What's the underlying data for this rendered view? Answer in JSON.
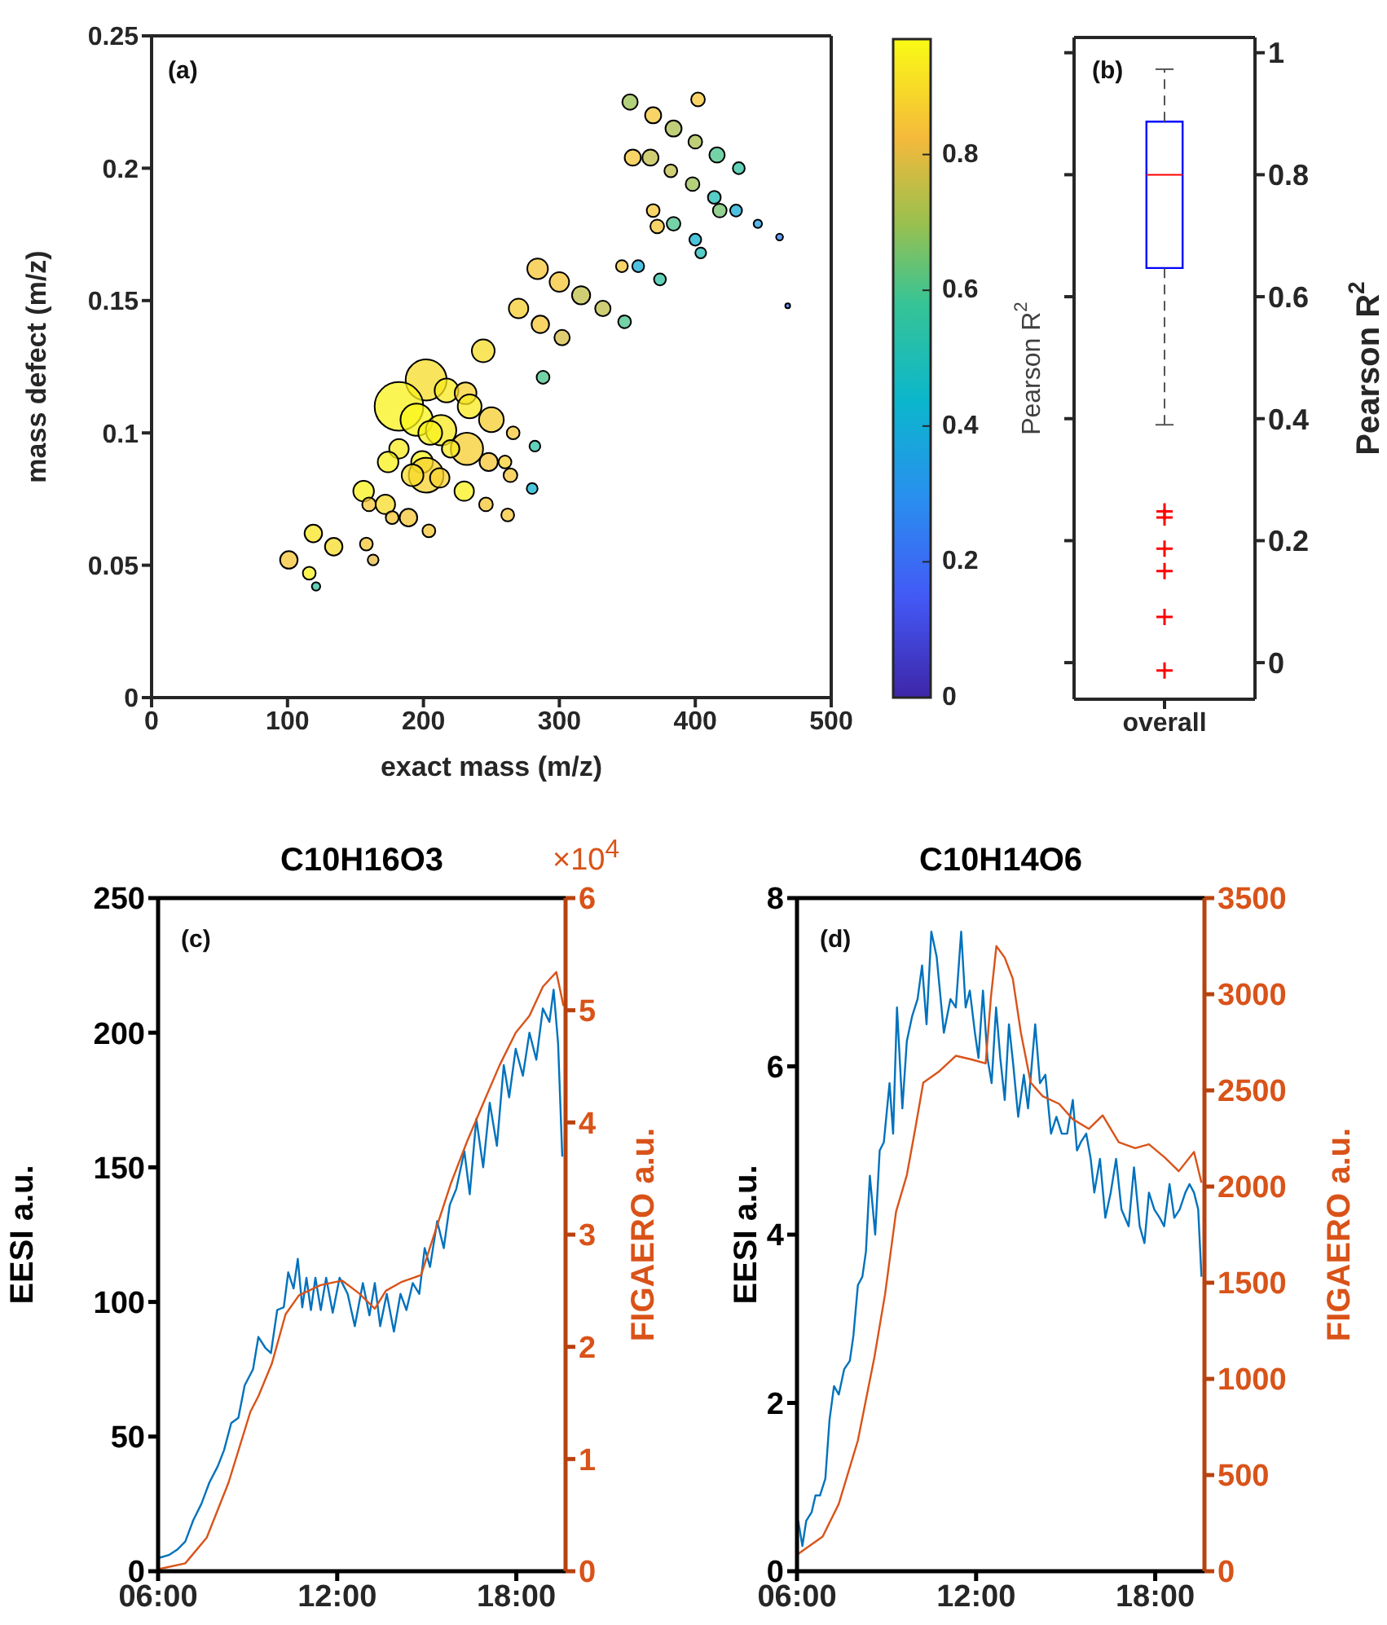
{
  "chart_data": [
    {
      "type": "bubble",
      "xlabel": "exact mass (m/z)",
      "ylabel": "mass defect (m/z)",
      "clabel": "Pearson R$^{2}$",
      "annotations": [
        "(a)"
      ],
      "xlim": [
        0,
        500
      ],
      "xticks": [
        0,
        100,
        200,
        300,
        400,
        500
      ],
      "ylim": [
        0,
        0.25
      ],
      "yticks": [
        0,
        0.05,
        0.1,
        0.15,
        0.2,
        0.25
      ],
      "clim": [
        0,
        0.97
      ],
      "cticks": [
        0,
        0.2,
        0.4,
        0.6,
        0.8
      ],
      "series": [
        {
          "x": [
            352,
            402,
            369,
            384,
            400,
            416,
            432,
            354,
            367,
            382,
            398,
            414,
            418,
            430,
            446,
            462,
            369,
            372,
            384,
            400,
            404,
            468,
            346,
            358,
            374,
            284,
            300,
            316,
            332,
            348,
            270,
            286,
            302,
            244,
            288,
            202,
            182,
            217,
            231,
            234,
            195,
            250,
            213,
            205,
            266,
            282,
            232,
            182,
            220,
            174,
            248,
            260,
            264,
            199,
            202,
            192,
            212,
            230,
            280,
            156,
            160,
            172,
            177,
            189,
            246,
            262,
            204,
            119,
            134,
            158,
            163,
            101,
            116,
            121
          ],
          "values": [
            0.225,
            0.226,
            0.22,
            0.215,
            0.21,
            0.205,
            0.2,
            0.204,
            0.204,
            0.199,
            0.194,
            0.189,
            0.184,
            0.184,
            0.179,
            0.174,
            0.184,
            0.178,
            0.179,
            0.173,
            0.168,
            0.148,
            0.163,
            0.163,
            0.158,
            0.162,
            0.157,
            0.152,
            0.147,
            0.142,
            0.147,
            0.141,
            0.136,
            0.131,
            0.121,
            0.12,
            0.11,
            0.116,
            0.115,
            0.11,
            0.105,
            0.105,
            0.101,
            0.1,
            0.1,
            0.095,
            0.094,
            0.094,
            0.094,
            0.089,
            0.089,
            0.089,
            0.084,
            0.089,
            0.084,
            0.084,
            0.083,
            0.078,
            0.079,
            0.078,
            0.073,
            0.073,
            0.068,
            0.068,
            0.073,
            0.069,
            0.063,
            0.062,
            0.057,
            0.058,
            0.052,
            0.052,
            0.047,
            0.042
          ],
          "sizes": [
            0.1,
            0.08,
            0.11,
            0.11,
            0.08,
            0.1,
            0.06,
            0.11,
            0.11,
            0.07,
            0.08,
            0.07,
            0.08,
            0.06,
            0.03,
            0.02,
            0.07,
            0.08,
            0.08,
            0.06,
            0.05,
            0.01,
            0.06,
            0.06,
            0.06,
            0.18,
            0.16,
            0.14,
            0.1,
            0.07,
            0.16,
            0.13,
            0.1,
            0.22,
            0.07,
            0.71,
            1,
            0.24,
            0.2,
            0.24,
            0.44,
            0.26,
            0.39,
            0.24,
            0.07,
            0.05,
            0.44,
            0.16,
            0.13,
            0.18,
            0.14,
            0.07,
            0.08,
            0.2,
            0.51,
            0.2,
            0.16,
            0.16,
            0.05,
            0.18,
            0.08,
            0.16,
            0.07,
            0.13,
            0.08,
            0.07,
            0.07,
            0.13,
            0.13,
            0.07,
            0.05,
            0.13,
            0.07,
            0.03
          ],
          "cvalues": [
            0.7,
            0.85,
            0.85,
            0.72,
            0.72,
            0.6,
            0.55,
            0.85,
            0.75,
            0.75,
            0.7,
            0.5,
            0.65,
            0.4,
            0.35,
            0.25,
            0.85,
            0.85,
            0.6,
            0.42,
            0.5,
            0.2,
            0.85,
            0.4,
            0.55,
            0.85,
            0.85,
            0.75,
            0.75,
            0.6,
            0.87,
            0.85,
            0.78,
            0.9,
            0.6,
            0.9,
            0.95,
            0.93,
            0.88,
            0.93,
            0.96,
            0.87,
            0.93,
            0.95,
            0.85,
            0.55,
            0.87,
            0.93,
            0.93,
            0.95,
            0.85,
            0.88,
            0.85,
            0.95,
            0.88,
            0.9,
            0.88,
            0.95,
            0.42,
            0.95,
            0.85,
            0.9,
            0.85,
            0.85,
            0.85,
            0.85,
            0.85,
            0.92,
            0.9,
            0.85,
            0.8,
            0.85,
            0.95,
            0.55
          ]
        }
      ]
    },
    {
      "type": "box",
      "categories": [
        "overall"
      ],
      "ylabel": "Pearson R$^{2}$",
      "annotations": [
        "(b)"
      ],
      "ylim": [
        -0.06,
        1.025
      ],
      "yticks": [
        0,
        0.2,
        0.4,
        0.6,
        0.8,
        1
      ],
      "series": [
        {
          "color": "#0000ff",
          "boxes": [
            {
              "low": 0.39,
              "q1": 0.647,
              "median": 0.8,
              "q3": 0.887,
              "high": 0.973,
              "outliers": [
                0.248,
                0.238,
                0.187,
                0.15,
                0.075,
                -0.013
              ]
            }
          ]
        }
      ]
    },
    {
      "type": "line",
      "title": "C10H16O3",
      "ylabel": "EESI a.u.",
      "y2label": "FIGAERO a.u.",
      "annotations": [
        "(c)",
        "×10$^{4}$"
      ],
      "xlim": [
        6,
        19.65
      ],
      "xticks": [
        {
          "value": 6,
          "label": "06:00"
        },
        {
          "value": 12,
          "label": "12:00"
        },
        {
          "value": 18,
          "label": "18:00"
        }
      ],
      "ylim": [
        0,
        250
      ],
      "yticks": [
        0,
        50,
        100,
        150,
        200,
        250
      ],
      "y2lim": [
        0,
        6
      ],
      "y2ticks": [
        0,
        1,
        2,
        3,
        4,
        5,
        6
      ],
      "series": [
        {
          "color": "#0072bd",
          "x": [
            6.04,
            6.36,
            6.64,
            6.91,
            7.18,
            7.45,
            7.72,
            8.0,
            8.21,
            8.45,
            8.69,
            8.9,
            9.18,
            9.36,
            9.59,
            9.78,
            9.99,
            10.21,
            10.36,
            10.54,
            10.68,
            10.83,
            10.97,
            11.12,
            11.27,
            11.45,
            11.63,
            11.85,
            12.08,
            12.35,
            12.59,
            12.86,
            13.08,
            13.26,
            13.44,
            13.66,
            13.9,
            14.12,
            14.32,
            14.53,
            14.75,
            14.93,
            15.11,
            15.35,
            15.57,
            15.77,
            15.99,
            16.26,
            16.44,
            16.66,
            16.89,
            17.11,
            17.35,
            17.58,
            17.76,
            17.98,
            18.22,
            18.44,
            18.67,
            18.89,
            19.11,
            19.25,
            19.4,
            19.54
          ],
          "values": [
            5,
            6,
            8,
            11,
            19,
            25,
            33,
            39,
            45,
            55,
            57,
            69,
            75,
            87,
            83,
            81,
            97,
            98,
            111,
            105,
            116,
            98,
            109,
            97,
            109,
            97,
            109,
            96,
            109,
            103,
            91,
            107,
            95,
            107,
            91,
            103,
            89,
            103,
            97,
            107,
            103,
            120,
            113,
            130,
            120,
            136,
            142,
            156,
            140,
            168,
            150,
            174,
            158,
            188,
            176,
            194,
            184,
            200,
            190,
            209,
            204,
            216,
            196,
            154
          ]
        },
        {
          "color": "#d95319",
          "axis": "y2",
          "x": [
            6.04,
            6.91,
            7.63,
            8.36,
            9.09,
            9.36,
            9.81,
            10.27,
            10.72,
            11.45,
            12.17,
            12.72,
            13.26,
            13.63,
            14.17,
            14.81,
            15.26,
            15.8,
            16.35,
            16.89,
            17.44,
            17.98,
            18.44,
            18.89,
            19.34,
            19.58
          ],
          "values": [
            0.02,
            0.07,
            0.3,
            0.79,
            1.42,
            1.56,
            1.85,
            2.29,
            2.46,
            2.55,
            2.59,
            2.48,
            2.34,
            2.5,
            2.58,
            2.64,
            3.01,
            3.45,
            3.83,
            4.17,
            4.51,
            4.8,
            4.95,
            5.21,
            5.34,
            5.04
          ]
        }
      ]
    },
    {
      "type": "line",
      "title": "C10H14O6",
      "ylabel": "EESI a.u.",
      "y2label": "FIGAERO a.u.",
      "annotations": [
        "(d)"
      ],
      "xlim": [
        6,
        19.65
      ],
      "xticks": [
        {
          "value": 6,
          "label": "06:00"
        },
        {
          "value": 12,
          "label": "12:00"
        },
        {
          "value": 18,
          "label": "18:00"
        }
      ],
      "ylim": [
        0,
        8
      ],
      "yticks": [
        0,
        2,
        4,
        6,
        8
      ],
      "y2lim": [
        0,
        3500
      ],
      "y2ticks": [
        0,
        500,
        1000,
        1500,
        2000,
        2500,
        3000,
        3500
      ],
      "series": [
        {
          "color": "#0072bd",
          "x": [
            6.04,
            6.18,
            6.31,
            6.49,
            6.62,
            6.77,
            6.95,
            7.09,
            7.24,
            7.4,
            7.58,
            7.77,
            7.89,
            8.04,
            8.19,
            8.31,
            8.44,
            8.62,
            8.77,
            8.91,
            9.1,
            9.22,
            9.35,
            9.53,
            9.68,
            9.86,
            10.04,
            10.19,
            10.34,
            10.5,
            10.68,
            10.92,
            11.14,
            11.32,
            11.5,
            11.65,
            11.79,
            11.96,
            12.08,
            12.23,
            12.38,
            12.52,
            12.67,
            12.81,
            12.96,
            13.1,
            13.25,
            13.41,
            13.6,
            13.74,
            13.98,
            14.14,
            14.32,
            14.51,
            14.69,
            14.87,
            15.05,
            15.24,
            15.38,
            15.51,
            15.69,
            15.84,
            15.96,
            16.15,
            16.33,
            16.51,
            16.69,
            16.87,
            17.11,
            17.29,
            17.48,
            17.64,
            17.79,
            17.97,
            18.15,
            18.3,
            18.48,
            18.64,
            18.82,
            19.01,
            19.15,
            19.3,
            19.44,
            19.55
          ],
          "values": [
            0.6,
            0.3,
            0.6,
            0.7,
            0.9,
            0.9,
            1.1,
            1.8,
            2.2,
            2.1,
            2.4,
            2.5,
            2.8,
            3.4,
            3.5,
            3.8,
            4.7,
            4.0,
            5.0,
            5.1,
            5.8,
            5.2,
            6.7,
            5.5,
            6.3,
            6.6,
            6.8,
            7.2,
            6.5,
            7.6,
            7.3,
            6.4,
            6.8,
            6.7,
            7.6,
            6.7,
            6.9,
            6.4,
            6.1,
            6.9,
            6.1,
            5.8,
            6.7,
            6.1,
            5.6,
            6.5,
            6.0,
            5.4,
            5.9,
            5.5,
            6.5,
            5.8,
            5.9,
            5.2,
            5.4,
            5.2,
            5.2,
            5.6,
            5.0,
            5.1,
            5.2,
            4.9,
            4.5,
            4.9,
            4.2,
            4.5,
            4.9,
            4.3,
            4.1,
            4.8,
            4.1,
            3.9,
            4.5,
            4.3,
            4.2,
            4.1,
            4.6,
            4.2,
            4.3,
            4.5,
            4.6,
            4.5,
            4.3,
            3.5
          ]
        },
        {
          "color": "#d95319",
          "axis": "y2",
          "x": [
            6.04,
            6.86,
            7.4,
            8.04,
            8.59,
            8.95,
            9.32,
            9.68,
            9.95,
            10.23,
            10.77,
            11.32,
            11.87,
            12.32,
            12.5,
            12.68,
            12.96,
            13.23,
            13.5,
            13.83,
            14.23,
            14.78,
            15.24,
            15.78,
            16.24,
            16.78,
            17.33,
            17.79,
            18.33,
            18.79,
            19.3,
            19.55
          ],
          "values": [
            90,
            180,
            350,
            680,
            1110,
            1440,
            1870,
            2060,
            2290,
            2540,
            2600,
            2680,
            2660,
            2640,
            2990,
            3250,
            3190,
            3080,
            2800,
            2540,
            2470,
            2430,
            2350,
            2300,
            2370,
            2230,
            2200,
            2220,
            2150,
            2080,
            2180,
            2020
          ]
        }
      ]
    }
  ]
}
